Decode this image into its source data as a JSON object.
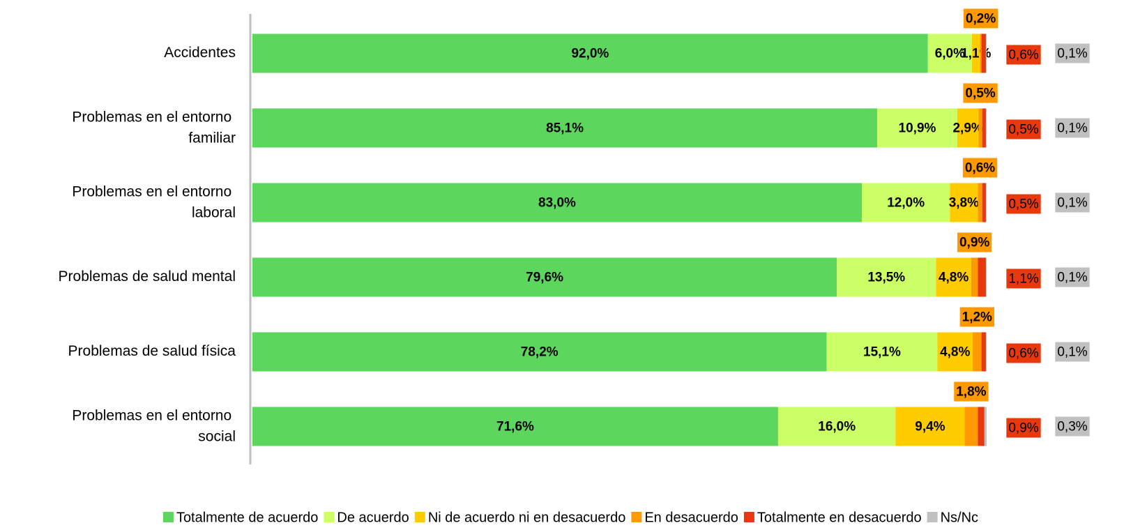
{
  "chart_data": {
    "type": "stacked-bar-horizontal",
    "categories": [
      "Accidentes",
      "Problemas en el entorno familiar",
      "Problemas en el entorno laboral",
      "Problemas de salud mental",
      "Problemas de salud física",
      "Problemas en el entorno social"
    ],
    "xlim": [
      0,
      100
    ],
    "series": [
      {
        "name": "Totalmente de acuerdo",
        "color": "#5cd65c",
        "values": [
          92.0,
          85.1,
          83.0,
          79.6,
          78.2,
          71.6
        ],
        "value_labels": [
          "92,0%",
          "85,1%",
          "83,0%",
          "79,6%",
          "78,2%",
          "71,6%"
        ]
      },
      {
        "name": "De acuerdo",
        "color": "#ccff66",
        "values": [
          6.0,
          10.9,
          12.0,
          13.5,
          15.1,
          16.0
        ],
        "value_labels": [
          "6,0%",
          "10,9%",
          "12,0%",
          "13,5%",
          "15,1%",
          "16,0%"
        ]
      },
      {
        "name": "Ni de acuerdo ni en desacuerdo",
        "color": "#ffcc00",
        "values": [
          1.1,
          2.9,
          3.8,
          4.8,
          4.8,
          9.4
        ],
        "value_labels": [
          "1,1%",
          "2,9%",
          "3,8%",
          "4,8%",
          "4,8%",
          "9,4%"
        ]
      },
      {
        "name": "En desacuerdo",
        "color": "#ff9900",
        "values": [
          0.2,
          0.5,
          0.6,
          0.9,
          1.2,
          1.8
        ],
        "value_labels": [
          "0,2%",
          "0,5%",
          "0,6%",
          "0,9%",
          "1,2%",
          "1,8%"
        ]
      },
      {
        "name": "Totalmente en desacuerdo",
        "color": "#e8380d",
        "values": [
          0.6,
          0.5,
          0.5,
          1.1,
          0.6,
          0.9
        ],
        "value_labels": [
          "0,6%",
          "0,5%",
          "0,5%",
          "1,1%",
          "0,6%",
          "0,9%"
        ]
      },
      {
        "name": "Ns/Nc",
        "color": "#c0c0c0",
        "values": [
          0.1,
          0.1,
          0.1,
          0.1,
          0.1,
          0.3
        ],
        "value_labels": [
          "0,1%",
          "0,1%",
          "0,1%",
          "0,1%",
          "0,1%",
          "0,3%"
        ]
      }
    ]
  }
}
